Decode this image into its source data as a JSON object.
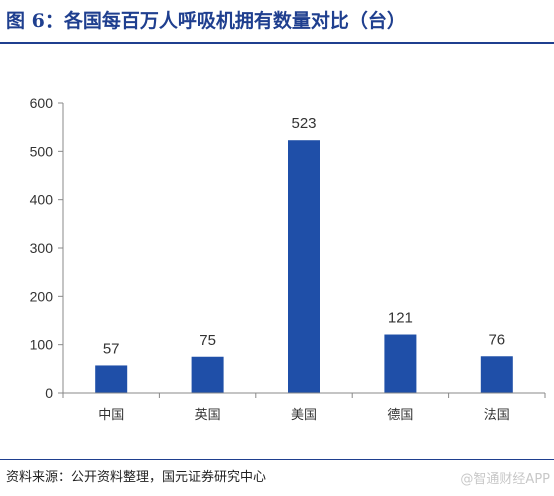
{
  "header": {
    "title": "图 6：各国每百万人呼吸机拥有数量对比（台）"
  },
  "footer": {
    "source": "资料来源：公开资料整理，国元证券研究中心",
    "watermark": "@智通财经APP"
  },
  "colors": {
    "bar": "#1f4fa8",
    "title": "#1f3f8f",
    "axis": "#888888"
  },
  "chart_data": {
    "type": "bar",
    "categories": [
      "中国",
      "英国",
      "美国",
      "德国",
      "法国"
    ],
    "values": [
      57,
      75,
      523,
      121,
      76
    ],
    "yticks": [
      0,
      100,
      200,
      300,
      400,
      500,
      600
    ],
    "ylim": [
      0,
      600
    ],
    "grid": false,
    "legend": "none",
    "data_labels": true
  }
}
